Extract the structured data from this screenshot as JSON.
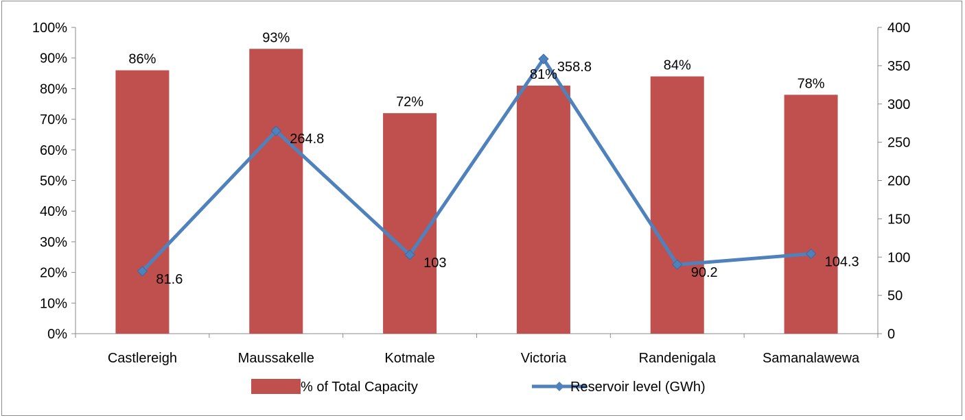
{
  "chart_data": {
    "type": "bar",
    "categories": [
      "Castlereigh",
      "Maussakelle",
      "Kotmale",
      "Victoria",
      "Randenigala",
      "Samanalawewa"
    ],
    "series": [
      {
        "name": "% of Total Capacity",
        "kind": "bar",
        "axis": "left",
        "values": [
          86,
          93,
          72,
          81,
          84,
          78
        ],
        "labels": [
          "86%",
          "93%",
          "72%",
          "81%",
          "84%",
          "78%"
        ],
        "color": "#c0504d"
      },
      {
        "name": "Reservoir level (GWh)",
        "kind": "line",
        "axis": "right",
        "values": [
          81.6,
          264.8,
          103,
          358.8,
          90.2,
          104.3
        ],
        "labels": [
          "81.6",
          "264.8",
          "103",
          "358.8",
          "90.2",
          "104.3"
        ],
        "color": "#4f81bd",
        "marker": "diamond"
      }
    ],
    "y_left": {
      "ylim": [
        0,
        100
      ],
      "ticks": [
        "0%",
        "10%",
        "20%",
        "30%",
        "40%",
        "50%",
        "60%",
        "70%",
        "80%",
        "90%",
        "100%"
      ]
    },
    "y_right": {
      "ylim": [
        0,
        400
      ],
      "ticks": [
        "0",
        "50",
        "100",
        "150",
        "200",
        "250",
        "300",
        "350",
        "400"
      ]
    },
    "grid": false,
    "legend": "bottom"
  }
}
